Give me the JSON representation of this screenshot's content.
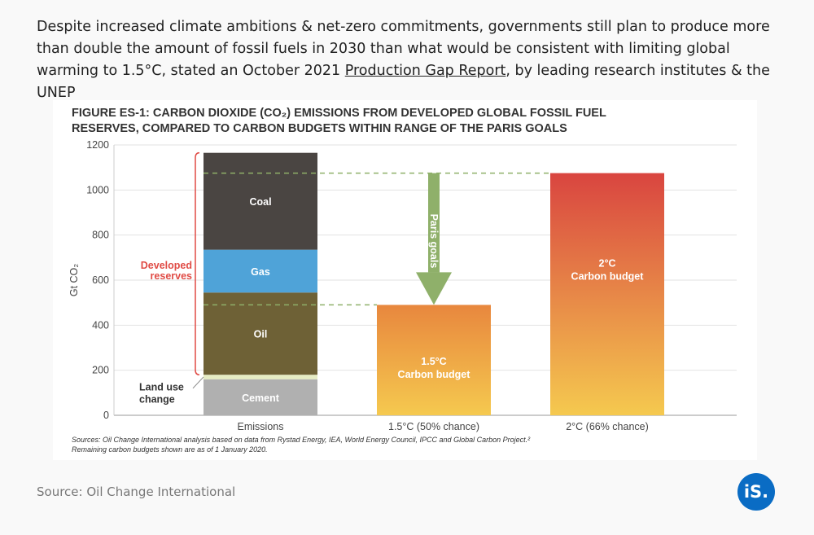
{
  "intro": {
    "text_before_link": "Despite increased climate ambitions & net-zero commitments, governments still plan to produce more than double the amount of fossil fuels in 2030 than what would be consistent with limiting global warming to 1.5°C, stated an October 2021 ",
    "link": "Production Gap Report",
    "text_after_link": ", by leading research institutes & the UNEP"
  },
  "source": "Source: Oil Change International",
  "logo": "iS.",
  "chart_data": {
    "type": "bar",
    "stacked": true,
    "title_line1": "FIGURE ES-1: CARBON DIOXIDE (CO₂) EMISSIONS FROM DEVELOPED GLOBAL FOSSIL FUEL",
    "title_line2": "RESERVES, COMPARED TO CARBON BUDGETS WITHIN RANGE OF THE PARIS GOALS",
    "ylabel": "Gt CO₂",
    "ylim": [
      0,
      1200
    ],
    "yticks": [
      "0",
      "200",
      "400",
      "600",
      "800",
      "1000",
      "1200"
    ],
    "grid": true,
    "categories": [
      "Emissions",
      "1.5°C (50% chance)",
      "2°C (66% chance)"
    ],
    "emissions_segments": [
      {
        "name": "Cement",
        "value": 160,
        "color": "#b0b0b0",
        "label_inside": true
      },
      {
        "name": "Land use change",
        "value": 20,
        "color": "#e6ecc4",
        "label_inside": false
      },
      {
        "name": "Oil",
        "value": 365,
        "color": "#6e6136",
        "label_inside": true
      },
      {
        "name": "Gas",
        "value": 190,
        "color": "#4fa3d8",
        "label_inside": true
      },
      {
        "name": "Coal",
        "value": 430,
        "color": "#4a4542",
        "label_inside": true
      }
    ],
    "budgets": [
      {
        "category": "1.5°C (50% chance)",
        "value": 490,
        "label_line1": "1.5°C",
        "label_line2": "Carbon budget",
        "color_top": "#e8873e",
        "color_bottom": "#f5c94f"
      },
      {
        "category": "2°C (66% chance)",
        "value": 1075,
        "label_line1": "2°C",
        "label_line2": "Carbon budget",
        "color_top": "#d94540",
        "color_bottom": "#f5c94f"
      }
    ],
    "bracket_label_line1": "Developed",
    "bracket_label_line2": "reserves",
    "land_use_label_line1": "Land use",
    "land_use_label_line2": "change",
    "arrow_label": "Paris goals",
    "arrow_color": "#8fb06a",
    "bracket_color": "#e04b45",
    "note_line1": "Sources: Oil Change International analysis based on data from Rystad Energy, IEA, World Energy Council, IPCC and Global Carbon Project.²",
    "note_line2": "Remaining carbon budgets shown are as of 1 January 2020."
  }
}
